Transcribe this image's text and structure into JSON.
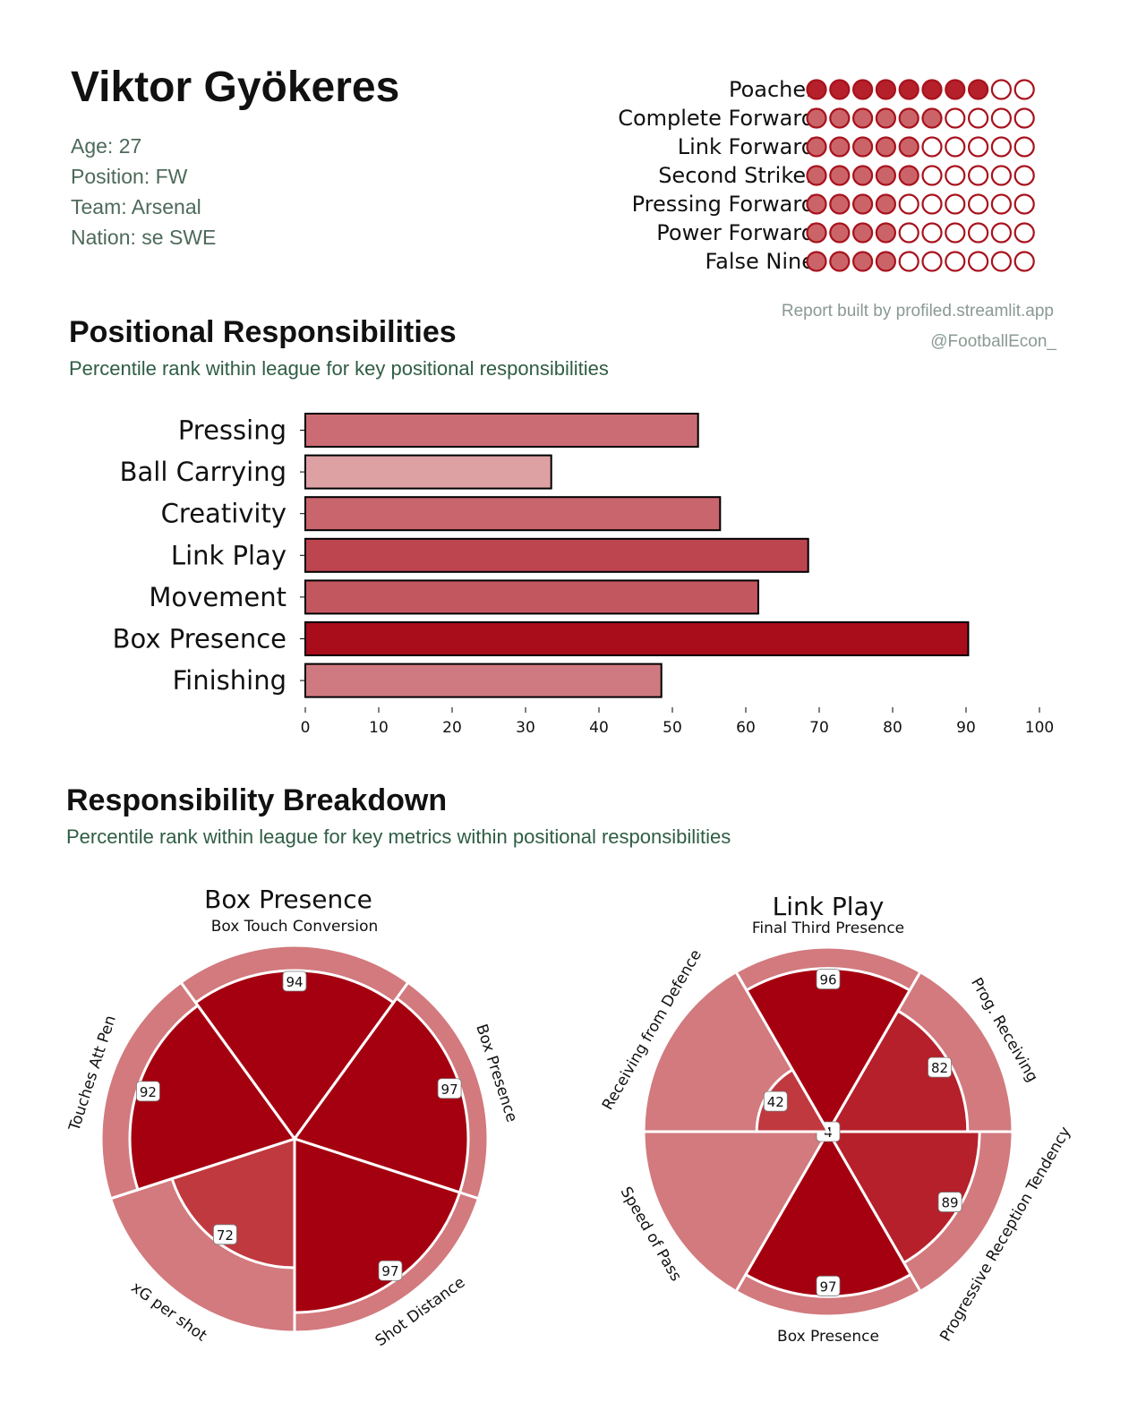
{
  "player": {
    "name": "Viktor Gyökeres",
    "age": "Age: 27",
    "position": "Position: FW",
    "team": "Team: Arsenal",
    "nation": "Nation: se SWE"
  },
  "roles": [
    {
      "label": "Poacher",
      "filled": 8,
      "total": 10
    },
    {
      "label": "Complete Forward",
      "filled": 6,
      "total": 10
    },
    {
      "label": "Link Forward",
      "filled": 5,
      "total": 10
    },
    {
      "label": "Second Striker",
      "filled": 5,
      "total": 10
    },
    {
      "label": "Pressing Forward",
      "filled": 4,
      "total": 10
    },
    {
      "label": "Power Forward",
      "filled": 4,
      "total": 10
    },
    {
      "label": "False Nine",
      "filled": 4,
      "total": 10
    }
  ],
  "credits": {
    "built_by": "Report built by profiled.streamlit.app",
    "handle": "@FootballEcon_"
  },
  "positional": {
    "title": "Positional Responsibilities",
    "subtitle": "Percentile rank within league for key positional responsibilities"
  },
  "breakdown": {
    "title": "Responsibility Breakdown",
    "subtitle": "Percentile rank within league for key metrics within positional responsibilities"
  },
  "colors": {
    "dark_red": "#a50010",
    "mid_red": "#b5202a",
    "light_red": "#d27a7e",
    "pale_red": "#e9c4c5"
  },
  "chart_data": [
    {
      "type": "bar",
      "orientation": "horizontal",
      "categories": [
        "Pressing",
        "Ball Carrying",
        "Creativity",
        "Link Play",
        "Movement",
        "Box Presence",
        "Finishing"
      ],
      "values": [
        53.5,
        33.5,
        56.5,
        68.5,
        61.7,
        90.3,
        48.5
      ],
      "xticks": [
        0,
        10,
        20,
        30,
        40,
        50,
        60,
        70,
        80,
        90,
        100
      ],
      "xlim": [
        0,
        100
      ],
      "title": "",
      "xlabel": "",
      "ylabel": ""
    },
    {
      "type": "pie",
      "style": "radar-pie",
      "title": "Box Presence",
      "labels": [
        "Box Touch Conversion",
        "Box Presence",
        "Shot Distance",
        "xG per shot",
        "Touches Att Pen"
      ],
      "values": [
        94,
        97,
        97,
        72,
        92
      ]
    },
    {
      "type": "pie",
      "style": "radar-pie",
      "title": "Link Play",
      "labels": [
        "Final Third Presence",
        "Prog. Receiving",
        "Progressive Reception Tendency",
        "Box Presence",
        "Speed of Pass",
        "Receiving from Defence"
      ],
      "values": [
        96,
        82,
        89,
        97,
        4,
        42
      ]
    }
  ]
}
